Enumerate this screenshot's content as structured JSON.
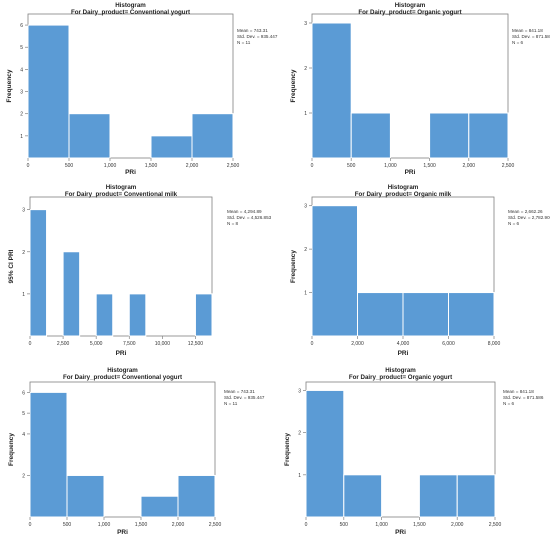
{
  "chart_data": [
    {
      "type": "bar",
      "title": "Histogram",
      "subtitle": "For Dairy_product= Conventional yogurt",
      "xlabel": "PRi",
      "ylabel": "Frequency",
      "bin_edges": [
        0,
        500,
        1000,
        1500,
        2000,
        2500
      ],
      "values": [
        6,
        2,
        0,
        1,
        2
      ],
      "xticks": [
        "0",
        "500",
        "1,000",
        "1,500",
        "2,000",
        "2,500"
      ],
      "yticks": [
        "1",
        "2",
        "3",
        "4",
        "5",
        "6"
      ],
      "ylim": [
        0,
        6.5
      ],
      "stats": [
        "Mean = 743.31",
        "Std. Dev. = 935.447",
        "N = 11"
      ],
      "bar_color": "#5b9bd5"
    },
    {
      "type": "bar",
      "title": "Histogram",
      "subtitle": "For Dairy_product= Organic yogurt",
      "xlabel": "PRi",
      "ylabel": "Frequency",
      "bin_edges": [
        0,
        500,
        1000,
        1500,
        2000,
        2500
      ],
      "values": [
        3,
        1,
        0,
        1,
        1
      ],
      "xticks": [
        "0",
        "500",
        "1,000",
        "1,500",
        "2,000",
        "2,500"
      ],
      "yticks": [
        "1",
        "2",
        "3"
      ],
      "ylim": [
        0,
        3.2
      ],
      "stats": [
        "Mean = 841.18",
        "Std. Dev. = 871.586",
        "N = 6"
      ],
      "bar_color": "#5b9bd5"
    },
    {
      "type": "bar",
      "title": "Histogram",
      "subtitle": "For Dairy_product= Conventional milk",
      "xlabel": "PRi",
      "ylabel": "95% CI PRI",
      "bin_edges": [
        0,
        1250,
        2500,
        3750,
        5000,
        6250,
        7500,
        8750,
        10000,
        11250,
        12500,
        13750
      ],
      "values": [
        3,
        0,
        2,
        0,
        1,
        0,
        1,
        0,
        0,
        0,
        1
      ],
      "xticks": [
        "0",
        "2,500",
        "5,000",
        "7,500",
        "10,000",
        "12,500"
      ],
      "xtick_values": [
        0,
        2500,
        5000,
        7500,
        10000,
        12500
      ],
      "yticks": [
        "1",
        "2",
        "3"
      ],
      "ylim": [
        0,
        3.3
      ],
      "stats": [
        "Mean = 4,294.89",
        "Std. Dev. = 4,526.853",
        "N = 8"
      ],
      "bar_color": "#5b9bd5"
    },
    {
      "type": "bar",
      "title": "Histogram",
      "subtitle": "For Dairy_product= Organic milk",
      "xlabel": "PRi",
      "ylabel": "Frequency",
      "bin_edges": [
        0,
        2000,
        4000,
        6000,
        8000
      ],
      "values": [
        3,
        1,
        1,
        1
      ],
      "xticks": [
        "0",
        "2,000",
        "4,000",
        "6,000",
        "8,000"
      ],
      "yticks": [
        "1",
        "2",
        "3"
      ],
      "ylim": [
        0,
        3.2
      ],
      "stats": [
        "Mean = 2,662.26",
        "Std. Dev. = 2,782.906",
        "N = 6"
      ],
      "bar_color": "#5b9bd5"
    },
    {
      "type": "bar",
      "title": "Histogram",
      "subtitle": "For Dairy_product= Conventional yogurt",
      "xlabel": "PRi",
      "ylabel": "Frequency",
      "bin_edges": [
        0,
        500,
        1000,
        1500,
        2000,
        2500
      ],
      "values": [
        6,
        2,
        0,
        1,
        2
      ],
      "xticks": [
        "0",
        "500",
        "1,000",
        "1,500",
        "2,000",
        "2,500"
      ],
      "yticks": [
        "2",
        "4",
        "5",
        "6"
      ],
      "ytick_values": [
        2,
        4,
        5,
        6
      ],
      "ylim": [
        0,
        6.5
      ],
      "stats": [
        "Mean = 743.31",
        "Std. Dev. = 935.447",
        "N = 11"
      ],
      "bar_color": "#5b9bd5"
    },
    {
      "type": "bar",
      "title": "Histogram",
      "subtitle": "For Dairy_product= Organic yogurt",
      "xlabel": "PRi",
      "ylabel": "Frequency",
      "bin_edges": [
        0,
        500,
        1000,
        1500,
        2000,
        2500
      ],
      "values": [
        3,
        1,
        0,
        1,
        1
      ],
      "xticks": [
        "0",
        "500",
        "1,000",
        "1,500",
        "2,000",
        "2,500"
      ],
      "yticks": [
        "1",
        "2",
        "3"
      ],
      "ylim": [
        0,
        3.2
      ],
      "stats": [
        "Mean = 841.18",
        "Std. Dev. = 871.586",
        "N = 6"
      ],
      "bar_color": "#5b9bd5"
    }
  ]
}
